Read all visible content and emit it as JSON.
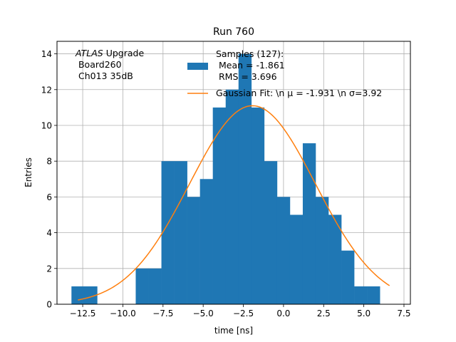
{
  "chart_data": {
    "type": "bar",
    "title": "Run 760",
    "xlabel": "time [ns]",
    "ylabel": "Entries",
    "xlim": [
      -14.1,
      7.9
    ],
    "ylim": [
      0,
      14.7
    ],
    "xticks": [
      -12.5,
      -10.0,
      -7.5,
      -5.0,
      -2.5,
      0.0,
      2.5,
      5.0,
      7.5
    ],
    "xtick_labels": [
      "−12.5",
      "−10.0",
      "−7.5",
      "−5.0",
      "−2.5",
      "0.0",
      "2.5",
      "5.0",
      "7.5"
    ],
    "yticks": [
      0,
      2,
      4,
      6,
      8,
      10,
      12,
      14
    ],
    "ytick_labels": [
      "0",
      "2",
      "4",
      "6",
      "8",
      "10",
      "12",
      "14"
    ],
    "grid": true,
    "annotation_lines": [
      "ATLAS Upgrade",
      " Board260",
      " Ch013 35dB"
    ],
    "histogram": {
      "color": "#1f77b4",
      "bin_edges": [
        -13.2,
        -12.4,
        -11.6,
        -10.8,
        -10.0,
        -9.2,
        -8.4,
        -7.6,
        -6.8,
        -6.0,
        -5.2,
        -4.4,
        -3.6,
        -2.8,
        -2.0,
        -1.2,
        -0.4,
        0.4,
        1.2,
        2.0,
        2.8,
        3.6,
        4.4,
        5.2,
        6.0,
        6.8
      ],
      "counts": [
        1,
        1,
        0,
        0,
        0,
        2,
        2,
        8,
        8,
        6,
        7,
        11,
        12,
        14,
        11,
        8,
        6,
        5,
        9,
        6,
        5,
        3,
        1,
        1,
        0
      ]
    },
    "gaussian_fit": {
      "color": "#ff7f0e",
      "mu": -1.931,
      "sigma": 3.92,
      "amplitude": 11.1,
      "x_range": [
        -12.8,
        6.6
      ]
    },
    "legend": {
      "placement": "top-right",
      "entries": [
        {
          "kind": "bar",
          "lines": [
            "Samples (127):",
            " Mean = -1.861",
            " RMS = 3.696"
          ]
        },
        {
          "kind": "line",
          "lines": [
            "Gaussian Fit: \\n μ = -1.931 \\n σ=3.92"
          ]
        }
      ]
    }
  }
}
